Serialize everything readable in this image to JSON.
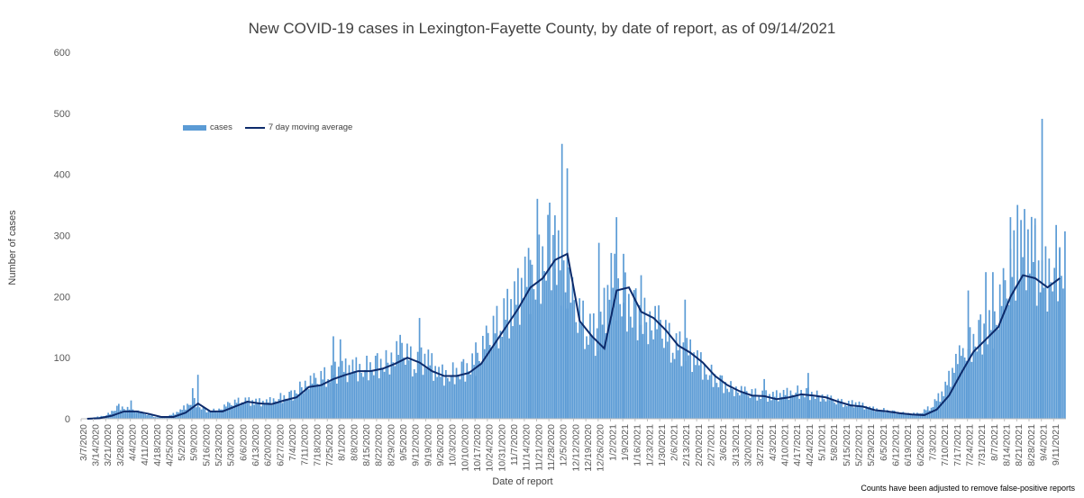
{
  "chart_data": {
    "type": "bar",
    "title": "New COVID-19 cases in Lexington-Fayette County, by date of report, as of 09/14/2021",
    "xlabel": "Date of report",
    "ylabel": "Number of cases",
    "ylim": [
      0,
      600
    ],
    "y_ticks": [
      "0",
      "100",
      "200",
      "300",
      "400",
      "500",
      "600"
    ],
    "grid": false,
    "legend_placement": "top-left",
    "footnote": "Counts have been adjusted to remove false-positive reports",
    "x_ticks": [
      "3/7/2020",
      "3/14/2020",
      "3/21/2020",
      "3/28/2020",
      "4/4/2020",
      "4/11/2020",
      "4/18/2020",
      "4/25/2020",
      "5/2/2020",
      "5/9/2020",
      "5/16/2020",
      "5/23/2020",
      "5/30/2020",
      "6/6/2020",
      "6/13/2020",
      "6/20/2020",
      "6/27/2020",
      "7/4/2020",
      "7/11/2020",
      "7/18/2020",
      "7/25/2020",
      "8/1/2020",
      "8/8/2020",
      "8/15/2020",
      "8/22/2020",
      "8/29/2020",
      "9/5/2020",
      "9/12/2020",
      "9/19/2020",
      "9/26/2020",
      "10/3/2020",
      "10/10/2020",
      "10/17/2020",
      "10/24/2020",
      "10/31/2020",
      "11/7/2020",
      "11/14/2020",
      "11/21/2020",
      "11/28/2020",
      "12/5/2020",
      "12/12/2020",
      "12/19/2020",
      "12/26/2020",
      "1/2/2021",
      "1/9/2021",
      "1/16/2021",
      "1/23/2021",
      "1/30/2021",
      "2/6/2021",
      "2/13/2021",
      "2/20/2021",
      "2/27/2021",
      "3/6/2021",
      "3/13/2021",
      "3/20/2021",
      "3/27/2021",
      "4/3/2021",
      "4/10/2021",
      "4/17/2021",
      "4/24/2021",
      "5/1/2021",
      "5/8/2021",
      "5/15/2021",
      "5/22/2021",
      "5/29/2021",
      "6/5/2021",
      "6/12/2021",
      "6/19/2021",
      "6/26/2021",
      "7/3/2021",
      "7/10/2021",
      "7/17/2021",
      "7/24/2021",
      "7/31/2021",
      "8/7/2021",
      "8/14/2021",
      "8/21/2021",
      "8/28/2021",
      "9/4/2021",
      "9/11/2021"
    ],
    "series": [
      {
        "name": "cases",
        "kind": "bar",
        "color": "#5b9bd5",
        "weekly_values": [
          0,
          2,
          6,
          20,
          15,
          9,
          3,
          4,
          13,
          30,
          14,
          14,
          24,
          30,
          28,
          27,
          34,
          38,
          57,
          62,
          72,
          80,
          82,
          84,
          88,
          98,
          115,
          90,
          100,
          72,
          75,
          80,
          95,
          130,
          160,
          185,
          225,
          240,
          290,
          250,
          180,
          150,
          135,
          230,
          200,
          175,
          165,
          150,
          120,
          115,
          95,
          75,
          58,
          50,
          42,
          40,
          37,
          40,
          45,
          42,
          38,
          30,
          25,
          25,
          17,
          15,
          11,
          9,
          8,
          20,
          45,
          90,
          120,
          140,
          155,
          210,
          270,
          290,
          220,
          260
        ],
        "spikes": [
          {
            "x": "4/4/2020",
            "y": 30
          },
          {
            "x": "5/9/2020",
            "y": 72
          },
          {
            "x": "5/9/2020",
            "y": 50
          },
          {
            "x": "7/25/2020",
            "y": 135
          },
          {
            "x": "8/1/2020",
            "y": 130
          },
          {
            "x": "9/12/2020",
            "y": 165
          },
          {
            "x": "10/17/2020",
            "y": 125
          },
          {
            "x": "11/14/2020",
            "y": 260
          },
          {
            "x": "11/21/2020",
            "y": 360
          },
          {
            "x": "11/28/2020",
            "y": 333
          },
          {
            "x": "12/5/2020",
            "y": 450
          },
          {
            "x": "12/5/2020",
            "y": 410
          },
          {
            "x": "12/26/2020",
            "y": 288
          },
          {
            "x": "1/2/2021",
            "y": 330
          },
          {
            "x": "1/9/2021",
            "y": 270
          },
          {
            "x": "1/16/2021",
            "y": 235
          },
          {
            "x": "2/13/2021",
            "y": 195
          },
          {
            "x": "3/27/2021",
            "y": 65
          },
          {
            "x": "4/24/2021",
            "y": 75
          },
          {
            "x": "7/17/2021",
            "y": 103
          },
          {
            "x": "7/24/2021",
            "y": 210
          },
          {
            "x": "7/31/2021",
            "y": 240
          },
          {
            "x": "8/7/2021",
            "y": 240
          },
          {
            "x": "8/14/2021",
            "y": 330
          },
          {
            "x": "8/21/2021",
            "y": 350
          },
          {
            "x": "8/28/2021",
            "y": 328
          },
          {
            "x": "9/4/2021",
            "y": 491
          },
          {
            "x": "9/11/2021",
            "y": 278
          }
        ]
      },
      {
        "name": "7 day moving average",
        "kind": "line",
        "color": "#0d2b6b",
        "weekly_values": [
          0,
          1,
          5,
          12,
          12,
          8,
          3,
          3,
          10,
          25,
          12,
          12,
          20,
          28,
          25,
          24,
          30,
          35,
          52,
          55,
          65,
          72,
          78,
          78,
          82,
          90,
          100,
          92,
          78,
          70,
          70,
          75,
          90,
          120,
          150,
          180,
          215,
          230,
          260,
          270,
          160,
          135,
          115,
          210,
          215,
          175,
          165,
          145,
          120,
          108,
          92,
          70,
          55,
          45,
          38,
          37,
          32,
          35,
          40,
          38,
          35,
          28,
          22,
          20,
          14,
          12,
          9,
          7,
          6,
          15,
          38,
          75,
          110,
          130,
          150,
          200,
          235,
          230,
          215,
          230
        ]
      }
    ]
  },
  "legend": {
    "cases_label": "cases",
    "avg_label": "7 day moving average"
  }
}
